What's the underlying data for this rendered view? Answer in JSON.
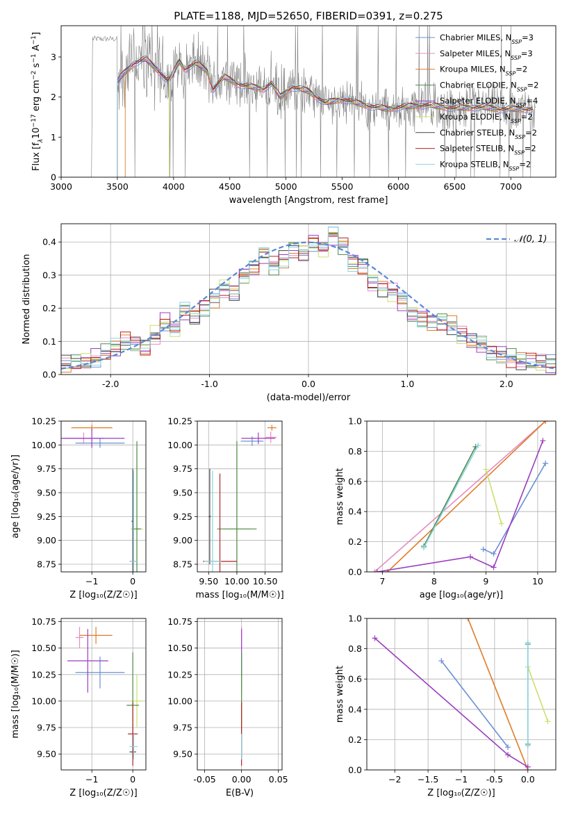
{
  "title": "PLATE=1188, MJD=52650, FIBERID=0391, z=0.275",
  "models": [
    {
      "name": "Chabrier MILES, N",
      "ssp": "=3",
      "color": "#6a8fd6"
    },
    {
      "name": "Salpeter MILES, N",
      "ssp": "=3",
      "color": "#e58cc0"
    },
    {
      "name": "Kroupa MILES, N",
      "ssp": "=2",
      "color": "#e07b26"
    },
    {
      "name": "Chabrier ELODIE, N",
      "ssp": "=2",
      "color": "#4f8a4f"
    },
    {
      "name": "Salpeter ELODIE, N",
      "ssp": "=4",
      "color": "#9b3dbf"
    },
    {
      "name": "Kroupa ELODIE, N",
      "ssp": "=2",
      "color": "#c9e06e"
    },
    {
      "name": "Chabrier STELIB, N",
      "ssp": "=2",
      "color": "#444444"
    },
    {
      "name": "Salpeter STELIB, N",
      "ssp": "=2",
      "color": "#b22222"
    },
    {
      "name": "Kroupa STELIB, N",
      "ssp": "=2",
      "color": "#89d4e0"
    }
  ],
  "ssp_subscript": "SSP",
  "chart_data": [
    {
      "type": "line",
      "id": "spectrum",
      "xlabel": "wavelength [Angstrom, rest frame]",
      "ylabel_parts": [
        "Flux [f",
        "λ",
        "10",
        "−17",
        " erg cm",
        "−2",
        " s",
        "−1",
        " A",
        "−1",
        "]"
      ],
      "xlim": [
        3000,
        7400
      ],
      "ylim": [
        0,
        3.78
      ],
      "xticks": [
        3000,
        3500,
        4000,
        4500,
        5000,
        5500,
        6000,
        6500,
        7000
      ],
      "yticks": [
        0,
        1,
        2,
        3
      ],
      "grid": false,
      "legend": "top-right",
      "data_color": "#7f7f7f",
      "model_anchor": [
        [
          3500,
          2.4
        ],
        [
          3560,
          2.6
        ],
        [
          3650,
          2.85
        ],
        [
          3750,
          2.95
        ],
        [
          3850,
          2.7
        ],
        [
          3950,
          2.4
        ],
        [
          3990,
          2.55
        ],
        [
          4050,
          2.9
        ],
        [
          4100,
          2.7
        ],
        [
          4200,
          2.85
        ],
        [
          4300,
          2.65
        ],
        [
          4350,
          2.2
        ],
        [
          4450,
          2.5
        ],
        [
          4600,
          2.3
        ],
        [
          4800,
          2.2
        ],
        [
          4870,
          2.35
        ],
        [
          4950,
          2.0
        ],
        [
          5050,
          2.25
        ],
        [
          5200,
          2.15
        ],
        [
          5350,
          1.85
        ],
        [
          5500,
          1.95
        ],
        [
          5700,
          1.8
        ],
        [
          5900,
          1.7
        ],
        [
          6000,
          1.75
        ],
        [
          6250,
          1.8
        ],
        [
          6500,
          1.72
        ],
        [
          6700,
          1.75
        ],
        [
          6900,
          1.7
        ],
        [
          7200,
          1.7
        ]
      ]
    },
    {
      "type": "histogram",
      "id": "residuals",
      "xlabel": "(data-model)/error",
      "ylabel": "Normed distribution",
      "xlim": [
        -2.5,
        2.5
      ],
      "ylim": [
        0,
        0.455
      ],
      "xticks": [
        -2,
        -1,
        0,
        1,
        2
      ],
      "yticks": [
        0.0,
        0.1,
        0.2,
        0.3,
        0.4
      ],
      "grid": true,
      "legend": "top-right",
      "gaussian": {
        "label": "𝒩(0, 1)",
        "color": "#5b86d6"
      },
      "bin_edges_start": -2.5,
      "bin_width": 0.1,
      "base_values": [
        0.03,
        0.035,
        0.04,
        0.05,
        0.065,
        0.08,
        0.1,
        0.09,
        0.08,
        0.12,
        0.16,
        0.14,
        0.19,
        0.17,
        0.2,
        0.23,
        0.26,
        0.25,
        0.3,
        0.32,
        0.36,
        0.33,
        0.35,
        0.38,
        0.37,
        0.4,
        0.38,
        0.42,
        0.39,
        0.34,
        0.33,
        0.28,
        0.26,
        0.25,
        0.22,
        0.18,
        0.17,
        0.16,
        0.16,
        0.15,
        0.12,
        0.1,
        0.09,
        0.07,
        0.06,
        0.05,
        0.04,
        0.04,
        0.035,
        0.03
      ]
    },
    {
      "type": "scatter",
      "id": "age-vs-Z",
      "xlabel": "Z [log₁₀(Z/Z☉)]",
      "ylabel": "age  [log₁₀(age/yr)]",
      "xlim": [
        -1.75,
        0.32
      ],
      "ylim": [
        8.67,
        10.25
      ],
      "xticks": [
        -1,
        0
      ],
      "yticks": [
        8.75,
        9.0,
        9.25,
        9.5,
        9.75,
        10.0,
        10.25
      ],
      "grid": true,
      "points": [
        {
          "m": 0,
          "x": -0.8,
          "y": 10.02,
          "ex": 0.6,
          "ey": 0.05
        },
        {
          "m": 1,
          "x": -1.2,
          "y": 10.07,
          "ex": 0.5,
          "ey": 0.06
        },
        {
          "m": 2,
          "x": -1.0,
          "y": 10.18,
          "ex": 0.5,
          "ey": 0.03
        },
        {
          "m": 4,
          "x": -1.0,
          "y": 10.07,
          "ex": 0.8,
          "ey": 0.1
        },
        {
          "m": 5,
          "x": 0.1,
          "y": 9.12,
          "ex": 0.15,
          "ey": 0.85
        },
        {
          "m": 3,
          "x": 0.1,
          "y": 9.12,
          "ex": 0.1,
          "ey": 0.92
        },
        {
          "m": 6,
          "x": 0.0,
          "y": 9.2,
          "ex": 0.03,
          "ey": 0.55
        },
        {
          "m": 7,
          "x": 0.0,
          "y": 8.78,
          "ex": 0.08,
          "ey": 0.02
        },
        {
          "m": 8,
          "x": 0.02,
          "y": 8.78,
          "ex": 0.1,
          "ey": 0.95
        }
      ]
    },
    {
      "type": "scatter",
      "id": "age-vs-mass",
      "xlabel": "mass [log₁₀(M/M☉)]",
      "ylabel": "",
      "xlim": [
        9.3,
        10.8
      ],
      "ylim": [
        8.67,
        10.25
      ],
      "xticks": [
        9.5,
        10.0,
        10.5
      ],
      "yticks": [
        8.75,
        9.0,
        9.25,
        9.5,
        9.75,
        10.0,
        10.25
      ],
      "grid": true,
      "points": [
        {
          "m": 0,
          "x": 10.27,
          "y": 10.04,
          "ex": 0.2,
          "ey": 0.05
        },
        {
          "m": 1,
          "x": 10.6,
          "y": 10.08,
          "ex": 0.1,
          "ey": 0.06
        },
        {
          "m": 2,
          "x": 10.62,
          "y": 10.18,
          "ex": 0.08,
          "ey": 0.03
        },
        {
          "m": 4,
          "x": 10.38,
          "y": 10.07,
          "ex": 0.3,
          "ey": 0.06
        },
        {
          "m": 5,
          "x": 10.0,
          "y": 9.12,
          "ex": 0.25,
          "ey": 0.85
        },
        {
          "m": 3,
          "x": 10.0,
          "y": 9.12,
          "ex": 0.35,
          "ey": 0.92
        },
        {
          "m": 6,
          "x": 9.52,
          "y": 9.25,
          "ex": 0.02,
          "ey": 0.5
        },
        {
          "m": 7,
          "x": 9.7,
          "y": 8.78,
          "ex": 0.3,
          "ey": 0.92
        },
        {
          "m": 8,
          "x": 9.57,
          "y": 8.78,
          "ex": 0.15,
          "ey": 0.95
        }
      ]
    },
    {
      "type": "line",
      "id": "massweight-vs-age",
      "xlabel": "age  [log₁₀(age/yr)]",
      "ylabel": "mass weight",
      "xlim": [
        6.7,
        10.35
      ],
      "ylim": [
        0,
        1.0
      ],
      "xticks": [
        7,
        8,
        9,
        10
      ],
      "yticks": [
        0.0,
        0.2,
        0.4,
        0.6,
        0.8,
        1.0
      ],
      "grid": true,
      "series": [
        {
          "m": 0,
          "x": [
            8.95,
            9.15,
            10.15
          ],
          "y": [
            0.15,
            0.12,
            0.72
          ]
        },
        {
          "m": 1,
          "x": [
            6.85,
            10.15
          ],
          "y": [
            0.0,
            1.0
          ]
        },
        {
          "m": 2,
          "x": [
            7.1,
            10.15
          ],
          "y": [
            0.0,
            1.0
          ]
        },
        {
          "m": 4,
          "x": [
            6.9,
            8.7,
            9.15,
            10.1
          ],
          "y": [
            0.0,
            0.1,
            0.03,
            0.87
          ]
        },
        {
          "m": 5,
          "x": [
            9.0,
            9.3
          ],
          "y": [
            0.68,
            0.32
          ]
        },
        {
          "m": 3,
          "x": [
            7.8,
            8.8
          ],
          "y": [
            0.17,
            0.83
          ]
        },
        {
          "m": 8,
          "x": [
            7.8,
            8.85
          ],
          "y": [
            0.16,
            0.84
          ]
        }
      ]
    },
    {
      "type": "scatter",
      "id": "mass-vs-Z",
      "xlabel": "Z [log₁₀(Z/Z☉)]",
      "ylabel": "mass [log₁₀(M/M☉)]",
      "xlim": [
        -1.75,
        0.32
      ],
      "ylim": [
        9.35,
        10.78
      ],
      "xticks": [
        -1,
        0
      ],
      "yticks": [
        9.5,
        9.75,
        10.0,
        10.25,
        10.5,
        10.75
      ],
      "grid": true,
      "points": [
        {
          "m": 0,
          "x": -0.8,
          "y": 10.27,
          "ex": 0.6,
          "ey": 0.15
        },
        {
          "m": 1,
          "x": -1.3,
          "y": 10.6,
          "ex": 0.1,
          "ey": 0.1
        },
        {
          "m": 2,
          "x": -0.9,
          "y": 10.62,
          "ex": 0.4,
          "ey": 0.08
        },
        {
          "m": 4,
          "x": -1.1,
          "y": 10.38,
          "ex": 0.5,
          "ey": 0.3
        },
        {
          "m": 5,
          "x": 0.1,
          "y": 10.0,
          "ex": 0.15,
          "ey": 0.25
        },
        {
          "m": 3,
          "x": 0.0,
          "y": 9.96,
          "ex": 0.15,
          "ey": 0.5
        },
        {
          "m": 6,
          "x": 0.0,
          "y": 9.52,
          "ex": 0.08,
          "ey": 0.05
        },
        {
          "m": 7,
          "x": 0.0,
          "y": 9.69,
          "ex": 0.12,
          "ey": 0.3
        },
        {
          "m": 8,
          "x": 0.02,
          "y": 9.57,
          "ex": 0.1,
          "ey": 0.12
        }
      ]
    },
    {
      "type": "scatter",
      "id": "mass-vs-EBV",
      "xlabel": "E(B-V)",
      "ylabel": "",
      "xlim": [
        -0.06,
        0.055
      ],
      "ylim": [
        9.35,
        10.78
      ],
      "xticks": [
        -0.05,
        0.0,
        0.05
      ],
      "yticks": [
        9.5,
        9.75,
        10.0,
        10.25,
        10.5,
        10.75
      ],
      "grid": true,
      "points": [
        {
          "m": 1,
          "x": 0.0,
          "y": 10.6,
          "ex": 0.0,
          "ey": 0.1
        },
        {
          "m": 4,
          "x": 0.0,
          "y": 10.38,
          "ex": 0.0,
          "ey": 0.3
        },
        {
          "m": 0,
          "x": 0.0,
          "y": 10.27,
          "ex": 0.0,
          "ey": 0.15
        },
        {
          "m": 5,
          "x": 0.0,
          "y": 10.0,
          "ex": 0.0,
          "ey": 0.25
        },
        {
          "m": 3,
          "x": 0.0,
          "y": 9.96,
          "ex": 0.0,
          "ey": 0.5
        },
        {
          "m": 7,
          "x": 0.0,
          "y": 9.69,
          "ex": 0.0,
          "ey": 0.3
        },
        {
          "m": 8,
          "x": 0.0,
          "y": 9.57,
          "ex": 0.0,
          "ey": 0.12
        }
      ]
    },
    {
      "type": "line",
      "id": "massweight-vs-Z",
      "xlabel": "Z [log₁₀(Z/Z☉)]",
      "ylabel": "mass weight",
      "xlim": [
        -2.42,
        0.42
      ],
      "ylim": [
        0,
        1.0
      ],
      "xticks": [
        -2.0,
        -1.5,
        -1.0,
        -0.5,
        0.0
      ],
      "yticks": [
        0.0,
        0.2,
        0.4,
        0.6,
        0.8,
        1.0
      ],
      "grid": true,
      "series": [
        {
          "m": 0,
          "x": [
            -1.3,
            -0.3
          ],
          "y": [
            0.72,
            0.15
          ]
        },
        {
          "m": 2,
          "x": [
            -0.9,
            0.0
          ],
          "y": [
            1.0,
            0.0
          ]
        },
        {
          "m": 4,
          "x": [
            -2.3,
            -0.3,
            0.0
          ],
          "y": [
            0.87,
            0.1,
            0.02
          ]
        },
        {
          "m": 5,
          "x": [
            0.0,
            0.3
          ],
          "y": [
            0.68,
            0.32
          ]
        },
        {
          "m": 3,
          "x": [
            0.0,
            0.0
          ],
          "y": [
            0.17,
            0.83
          ]
        },
        {
          "m": 8,
          "x": [
            0.0,
            0.0
          ],
          "y": [
            0.16,
            0.84
          ]
        }
      ]
    }
  ]
}
